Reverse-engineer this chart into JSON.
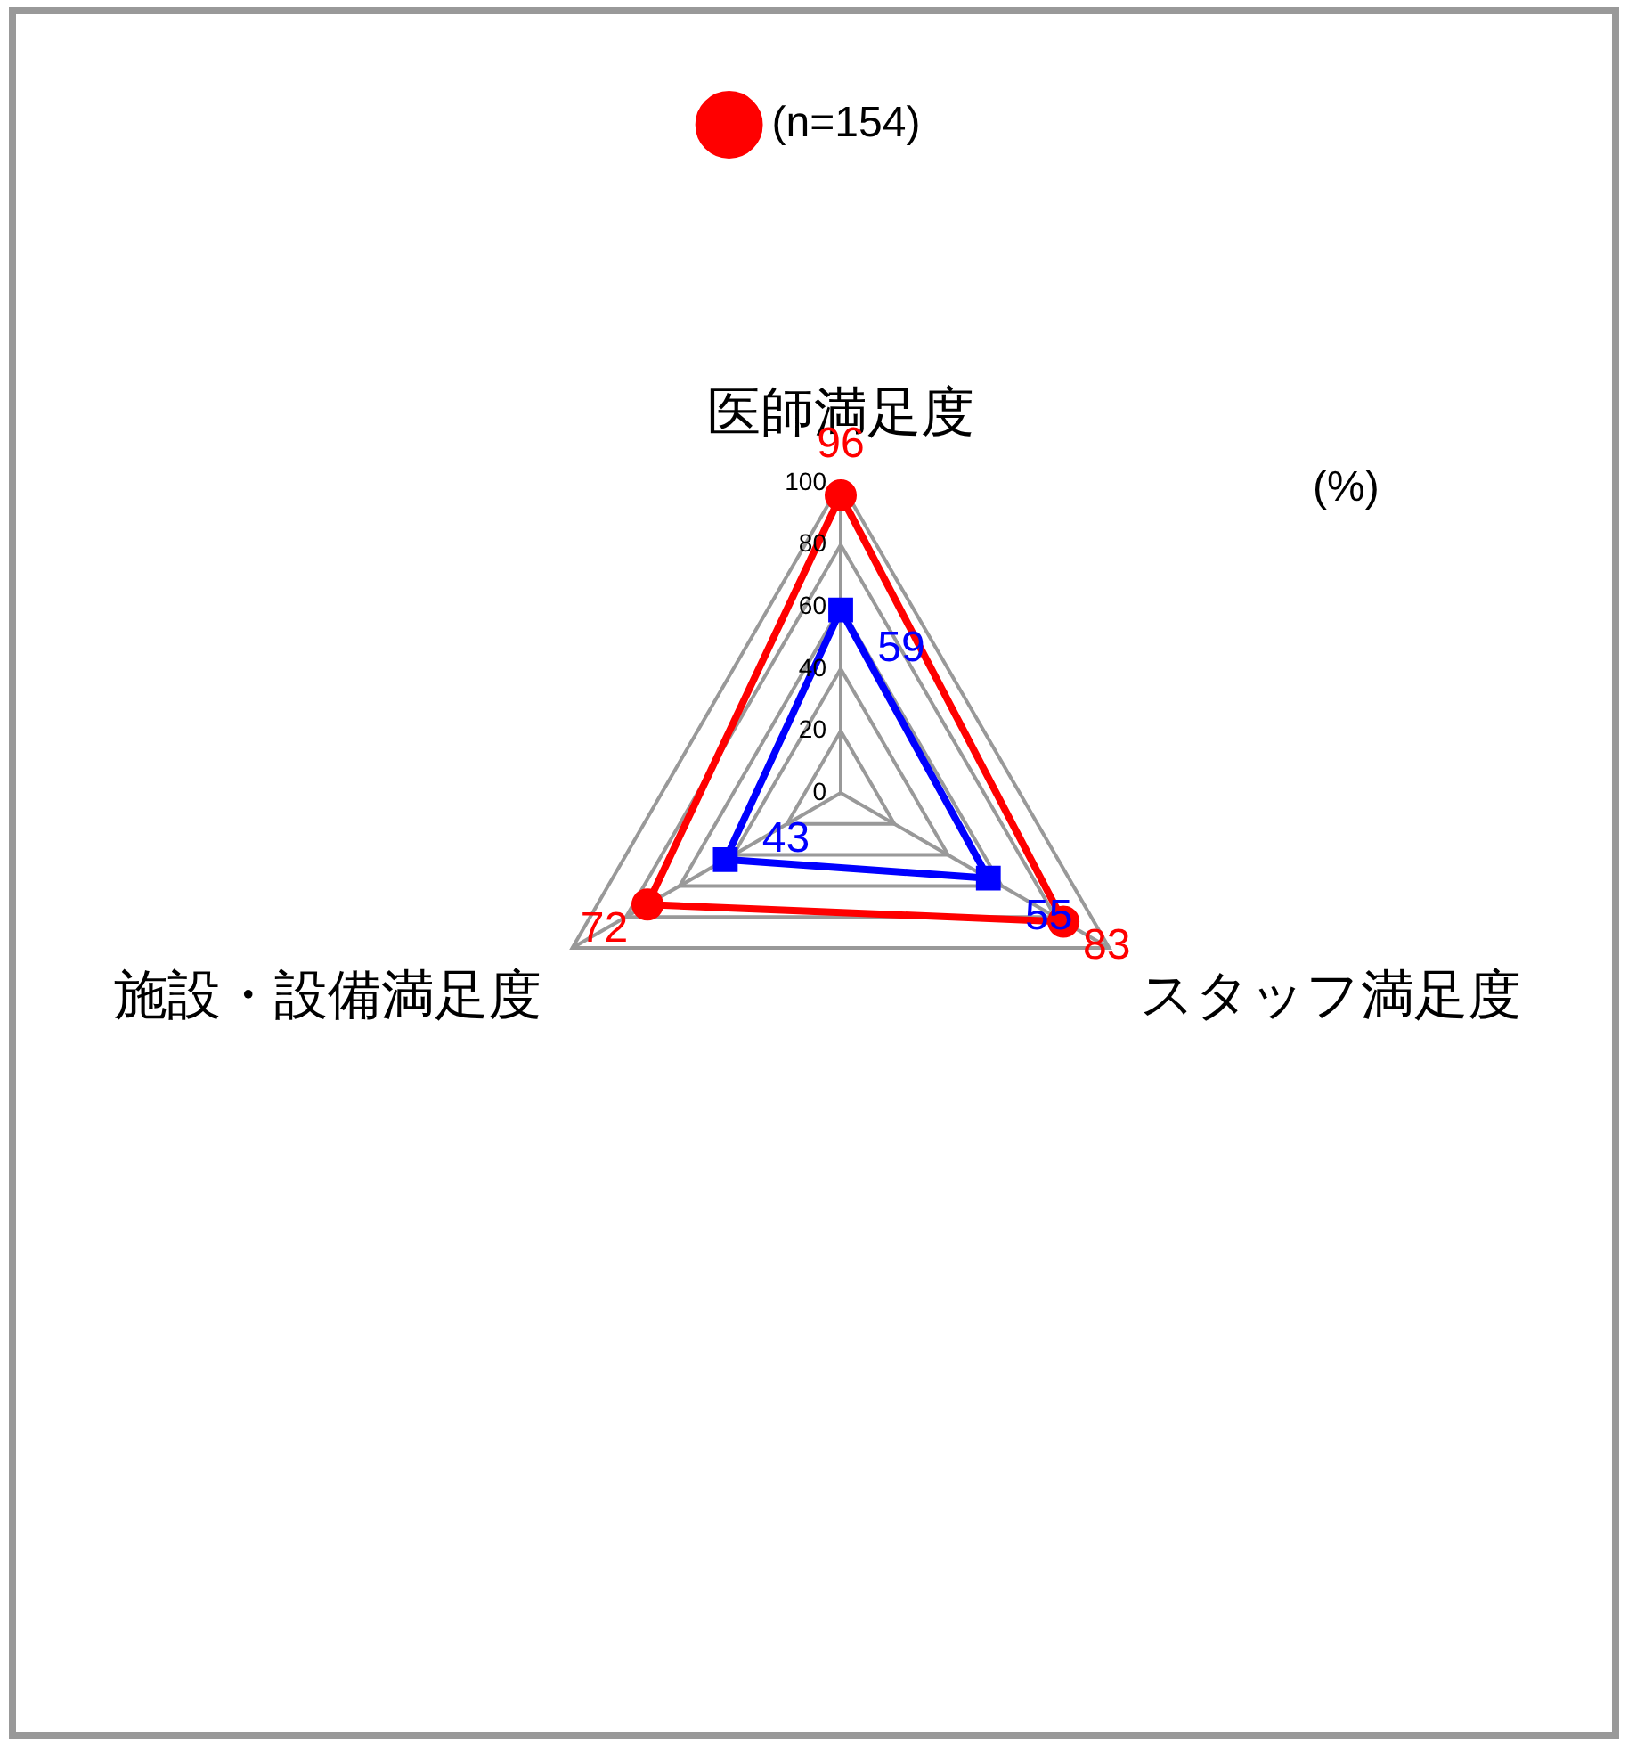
{
  "chart_data": {
    "type": "radar",
    "categories": [
      "医師満足度",
      "スタッフ満足度",
      "施設・設備満足度"
    ],
    "series": [
      {
        "name": "(n=154)",
        "color": "#ff0000",
        "values": [
          96,
          83,
          72
        ],
        "marker": "circle"
      },
      {
        "color": "#0000ff",
        "values": [
          59,
          55,
          43
        ],
        "marker": "square"
      }
    ],
    "ylim": [
      0,
      100
    ],
    "yticks": [
      0,
      20,
      40,
      60,
      80,
      100
    ],
    "grid": true,
    "legend": "top",
    "data_labels": true,
    "line_style": "solid",
    "annotations": [
      "(%)"
    ]
  }
}
